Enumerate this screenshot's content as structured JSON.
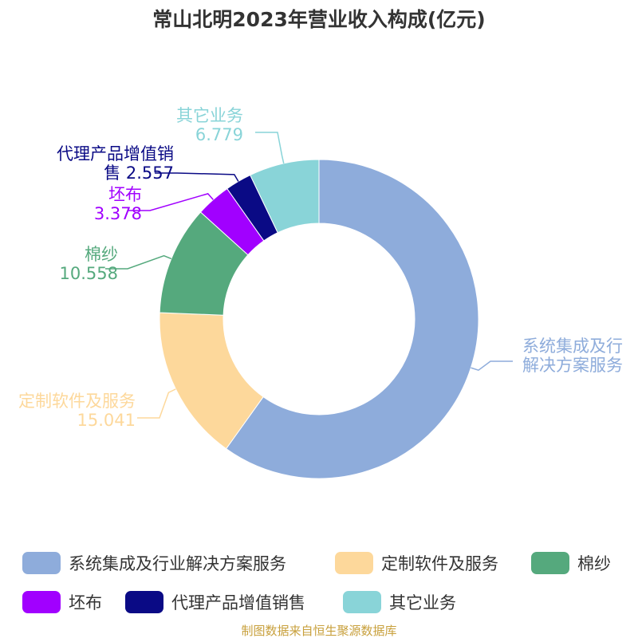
{
  "chart_data": {
    "type": "pie",
    "donut": true,
    "title": "常山北明2023年营业收入构成(亿元)",
    "unit": "亿元",
    "slices": [
      {
        "name": "系统集成及行业解决方案服务",
        "value": 57.2,
        "color": "#8eacdb",
        "label_lines": [
          "系统集成及行",
          "解决方案服务"
        ],
        "label_value": ""
      },
      {
        "name": "定制软件及服务",
        "value": 15.041,
        "color": "#fdd89b",
        "label_lines": [
          "定制软件及服务"
        ],
        "label_value": "15.041"
      },
      {
        "name": "棉纱",
        "value": 10.558,
        "color": "#55a97d",
        "label_lines": [
          "棉纱"
        ],
        "label_value": "10.558"
      },
      {
        "name": "坯布",
        "value": 3.378,
        "color": "#a100ff",
        "label_lines": [
          "坯布"
        ],
        "label_value": "3.378"
      },
      {
        "name": "代理产品增值销售",
        "value": 2.557,
        "color": "#0a0a85",
        "label_lines": [
          "代理产品增值销",
          "售 2.557"
        ],
        "label_value": ""
      },
      {
        "name": "其它业务",
        "value": 6.779,
        "color": "#89d4d8",
        "label_lines": [
          "其它业务"
        ],
        "label_value": "6.779"
      }
    ],
    "legend_position": "bottom",
    "source_note": "制图数据来自恒生聚源数据库"
  }
}
